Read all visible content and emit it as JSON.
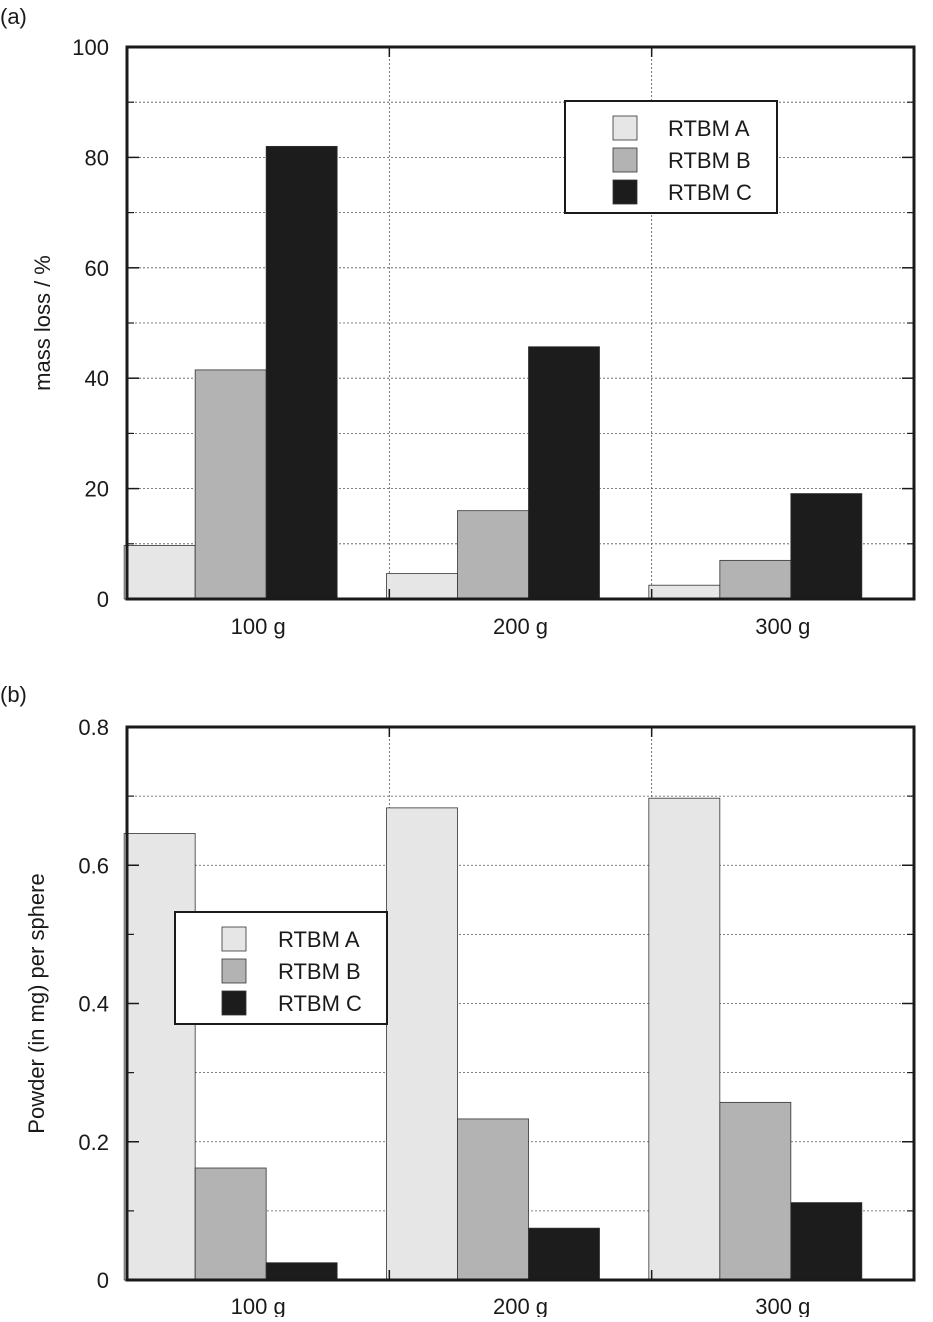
{
  "chart_data": [
    {
      "panel_label": "(a)",
      "type": "bar",
      "categories": [
        "100 g",
        "200 g",
        "300 g"
      ],
      "ylabel": "mass loss /  %",
      "xlabel": "",
      "ylim": [
        0,
        100
      ],
      "yticks": [
        "0",
        "20",
        "40",
        "60",
        "80",
        "100"
      ],
      "grid": true,
      "legend_position": "top-right",
      "series": [
        {
          "name": "RTBM A",
          "color": "#e6e6e6",
          "values": [
            9.7,
            4.6,
            2.5
          ]
        },
        {
          "name": "RTBM B",
          "color": "#b3b3b3",
          "values": [
            41.5,
            16.0,
            7.0
          ]
        },
        {
          "name": "RTBM C",
          "color": "#1c1c1c",
          "values": [
            82.0,
            45.7,
            19.1
          ]
        }
      ]
    },
    {
      "panel_label": "(b)",
      "type": "bar",
      "categories": [
        "100 g",
        "200 g",
        "300 g"
      ],
      "ylabel": "Powder (in mg) per sphere",
      "xlabel": "",
      "ylim": [
        0,
        0.8
      ],
      "yticks": [
        "0",
        "0.2",
        "0.4",
        "0.6",
        "0.8"
      ],
      "grid": true,
      "legend_position": "middle-left",
      "series": [
        {
          "name": "RTBM A",
          "color": "#e6e6e6",
          "values": [
            0.646,
            0.683,
            0.697
          ]
        },
        {
          "name": "RTBM B",
          "color": "#b3b3b3",
          "values": [
            0.162,
            0.233,
            0.257
          ]
        },
        {
          "name": "RTBM C",
          "color": "#1c1c1c",
          "values": [
            0.025,
            0.075,
            0.112
          ]
        }
      ]
    }
  ]
}
